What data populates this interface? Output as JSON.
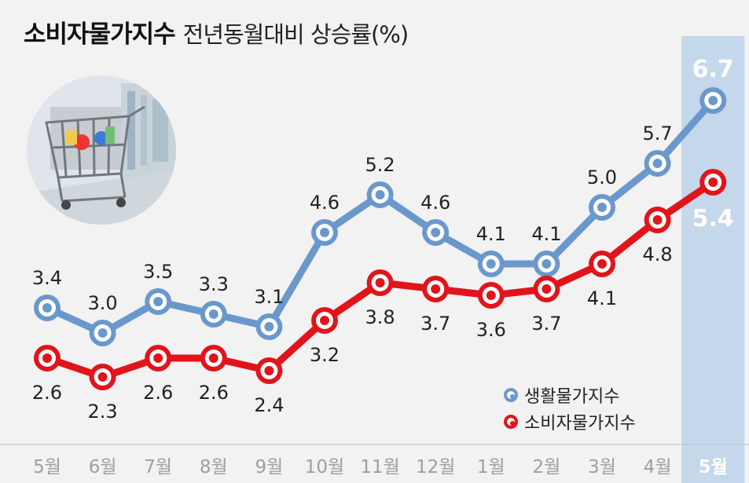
{
  "title": {
    "main": "소비자물가지수",
    "sub": "전년동월대비 상승률(%)"
  },
  "legend": {
    "living": "생활물가지수",
    "consumer": "소비자물가지수"
  },
  "colors": {
    "living": "#6a98cc",
    "consumer": "#e2141b",
    "highlight": "#c5d7ea",
    "axis_text": "#9e9e9e",
    "highlight_text": "#ffffff"
  },
  "illustration": "shopping-cart-photo",
  "chart_data": {
    "type": "line",
    "categories": [
      "5월",
      "6월",
      "7월",
      "8월",
      "9월",
      "10월",
      "11월",
      "12월",
      "1월",
      "2월",
      "3월",
      "4월",
      "5월"
    ],
    "series": [
      {
        "name": "생활물가지수",
        "values": [
          3.4,
          3.0,
          3.5,
          3.3,
          3.1,
          4.6,
          5.2,
          4.6,
          4.1,
          4.1,
          5.0,
          5.7,
          6.7
        ],
        "labels": [
          "3.4",
          "3.0",
          "3.5",
          "3.3",
          "3.1",
          "4.6",
          "5.2",
          "4.6",
          "4.1",
          "4.1",
          "5.0",
          "5.7",
          "6.7"
        ]
      },
      {
        "name": "소비자물가지수",
        "values": [
          2.6,
          2.3,
          2.6,
          2.6,
          2.4,
          3.2,
          3.8,
          3.7,
          3.6,
          3.7,
          4.1,
          4.8,
          5.4
        ],
        "labels": [
          "2.6",
          "2.3",
          "2.6",
          "2.6",
          "2.4",
          "3.2",
          "3.8",
          "3.7",
          "3.6",
          "3.7",
          "4.1",
          "4.8",
          "5.4"
        ]
      }
    ],
    "highlight_index": 12,
    "grid": false,
    "legend_position": "bottom-right"
  }
}
